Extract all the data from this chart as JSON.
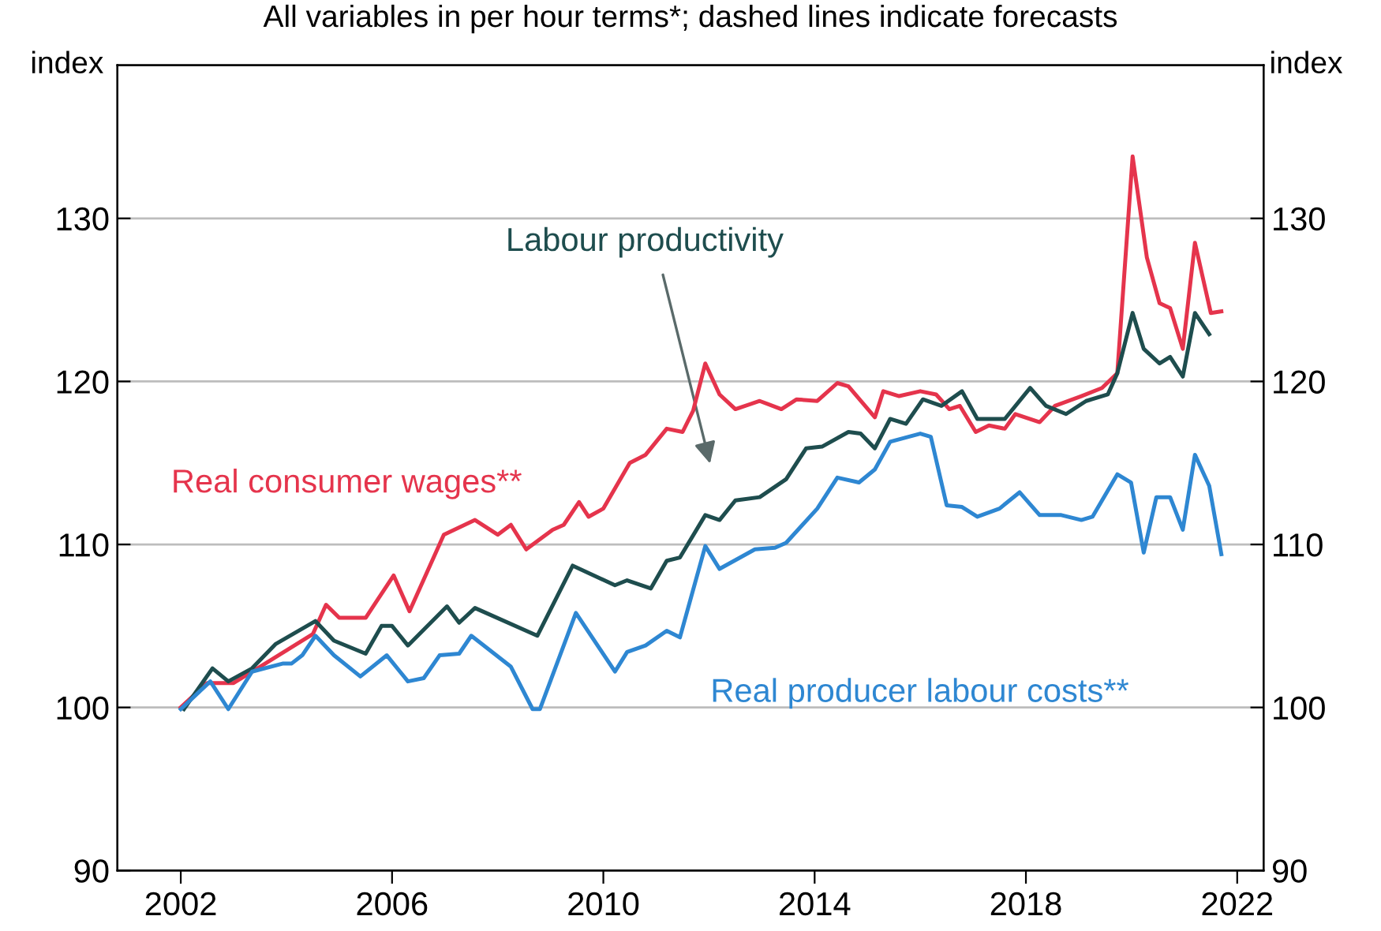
{
  "chart_data": {
    "type": "line",
    "title": "All variables in per hour terms*; dashed lines indicate forecasts",
    "ylabel": "index",
    "y2label": "index",
    "xlim": [
      2000.8,
      2022.5
    ],
    "xticks": [
      2002,
      2006,
      2010,
      2014,
      2018,
      2022
    ],
    "ylim": [
      90,
      139.4
    ],
    "yticks": [
      90,
      100,
      110,
      120,
      130
    ],
    "y2lim": [
      90,
      139.4
    ],
    "y2ticks": [
      90,
      100,
      110,
      120,
      130
    ],
    "grid": "y",
    "legend": false,
    "marker": "none",
    "line_style": "solid",
    "series": [
      {
        "name": "Real consumer wages**",
        "color": "#e5344c",
        "x": [
          2002.0,
          2002.5,
          2003.0,
          2003.5,
          2004.0,
          2004.5,
          2004.75,
          2005.0,
          2005.5,
          2006.03,
          2006.33,
          2006.98,
          2007.57,
          2008.0,
          2008.25,
          2008.54,
          2009.04,
          2009.25,
          2009.54,
          2009.72,
          2010.0,
          2010.5,
          2010.8,
          2011.2,
          2011.5,
          2011.7,
          2011.93,
          2012.2,
          2012.5,
          2012.96,
          2013.37,
          2013.66,
          2014.05,
          2014.43,
          2014.64,
          2015.14,
          2015.3,
          2015.6,
          2016.0,
          2016.3,
          2016.55,
          2016.75,
          2017.05,
          2017.3,
          2017.6,
          2017.8,
          2018.26,
          2018.55,
          2019.05,
          2019.44,
          2019.73,
          2020.02,
          2020.29,
          2020.53,
          2020.73,
          2020.97,
          2021.2,
          2021.5,
          2021.7
        ],
        "values": [
          100,
          101.5,
          101.5,
          102.5,
          103.5,
          104.5,
          106.3,
          105.5,
          105.5,
          108.1,
          105.9,
          110.6,
          111.5,
          110.6,
          111.2,
          109.7,
          110.9,
          111.2,
          112.6,
          111.7,
          112.2,
          115.0,
          115.5,
          117.1,
          116.9,
          118.2,
          121.1,
          119.2,
          118.3,
          118.8,
          118.3,
          118.9,
          118.8,
          119.9,
          119.7,
          117.8,
          119.4,
          119.1,
          119.4,
          119.2,
          118.3,
          118.5,
          116.9,
          117.3,
          117.1,
          118.0,
          117.5,
          118.5,
          119.1,
          119.6,
          120.5,
          133.8,
          127.6,
          124.8,
          124.5,
          122.0,
          128.5,
          124.2,
          124.3
        ]
      },
      {
        "name": "Labour productivity",
        "color": "#1e4d4e",
        "x": [
          2002.06,
          2002.6,
          2002.9,
          2003.35,
          2003.8,
          2004.55,
          2004.9,
          2005.5,
          2005.8,
          2006.0,
          2006.3,
          2007.04,
          2007.27,
          2007.57,
          2008.75,
          2009.42,
          2010.22,
          2010.45,
          2010.9,
          2011.2,
          2011.45,
          2011.93,
          2012.2,
          2012.5,
          2012.96,
          2013.46,
          2013.84,
          2014.14,
          2014.64,
          2014.87,
          2015.14,
          2015.43,
          2015.73,
          2016.05,
          2016.4,
          2016.79,
          2017.08,
          2017.6,
          2018.08,
          2018.38,
          2018.76,
          2019.14,
          2019.55,
          2019.73,
          2020.02,
          2020.23,
          2020.53,
          2020.73,
          2020.97,
          2021.2,
          2021.47
        ],
        "values": [
          99.9,
          102.4,
          101.6,
          102.4,
          103.9,
          105.3,
          104.1,
          103.3,
          105.0,
          105.0,
          103.8,
          106.2,
          105.2,
          106.1,
          104.4,
          108.7,
          107.5,
          107.8,
          107.3,
          109.0,
          109.2,
          111.8,
          111.5,
          112.7,
          112.9,
          114.0,
          115.9,
          116.0,
          116.9,
          116.8,
          115.9,
          117.7,
          117.4,
          118.9,
          118.5,
          119.4,
          117.7,
          117.7,
          119.6,
          118.5,
          118.0,
          118.8,
          119.2,
          120.5,
          124.2,
          122.0,
          121.1,
          121.5,
          120.3,
          124.2,
          122.9
        ]
      },
      {
        "name": "Real producer labour costs**",
        "color": "#2e87d2",
        "x": [
          2002.0,
          2002.56,
          2002.9,
          2003.35,
          2003.94,
          2004.1,
          2004.3,
          2004.55,
          2004.9,
          2005.4,
          2005.9,
          2006.3,
          2006.6,
          2006.9,
          2007.27,
          2007.5,
          2008.25,
          2008.66,
          2008.8,
          2009.48,
          2010.22,
          2010.45,
          2010.8,
          2011.2,
          2011.45,
          2011.93,
          2012.2,
          2012.87,
          2013.25,
          2013.46,
          2014.05,
          2014.43,
          2014.84,
          2015.14,
          2015.43,
          2016.0,
          2016.2,
          2016.5,
          2016.79,
          2017.08,
          2017.5,
          2017.88,
          2018.26,
          2018.67,
          2019.05,
          2019.26,
          2019.73,
          2019.99,
          2020.23,
          2020.47,
          2020.73,
          2020.97,
          2021.2,
          2021.47,
          2021.7
        ],
        "values": [
          99.9,
          101.6,
          99.9,
          102.2,
          102.7,
          102.7,
          103.2,
          104.4,
          103.2,
          101.9,
          103.2,
          101.6,
          101.8,
          103.2,
          103.3,
          104.4,
          102.5,
          99.9,
          99.9,
          105.8,
          102.2,
          103.4,
          103.8,
          104.7,
          104.3,
          109.9,
          108.5,
          109.7,
          109.8,
          110.1,
          112.2,
          114.1,
          113.8,
          114.6,
          116.3,
          116.8,
          116.6,
          112.4,
          112.3,
          111.7,
          112.2,
          113.2,
          111.8,
          111.8,
          111.5,
          111.7,
          114.3,
          113.8,
          109.5,
          112.9,
          112.9,
          110.9,
          115.5,
          113.6,
          109.4
        ]
      }
    ]
  }
}
